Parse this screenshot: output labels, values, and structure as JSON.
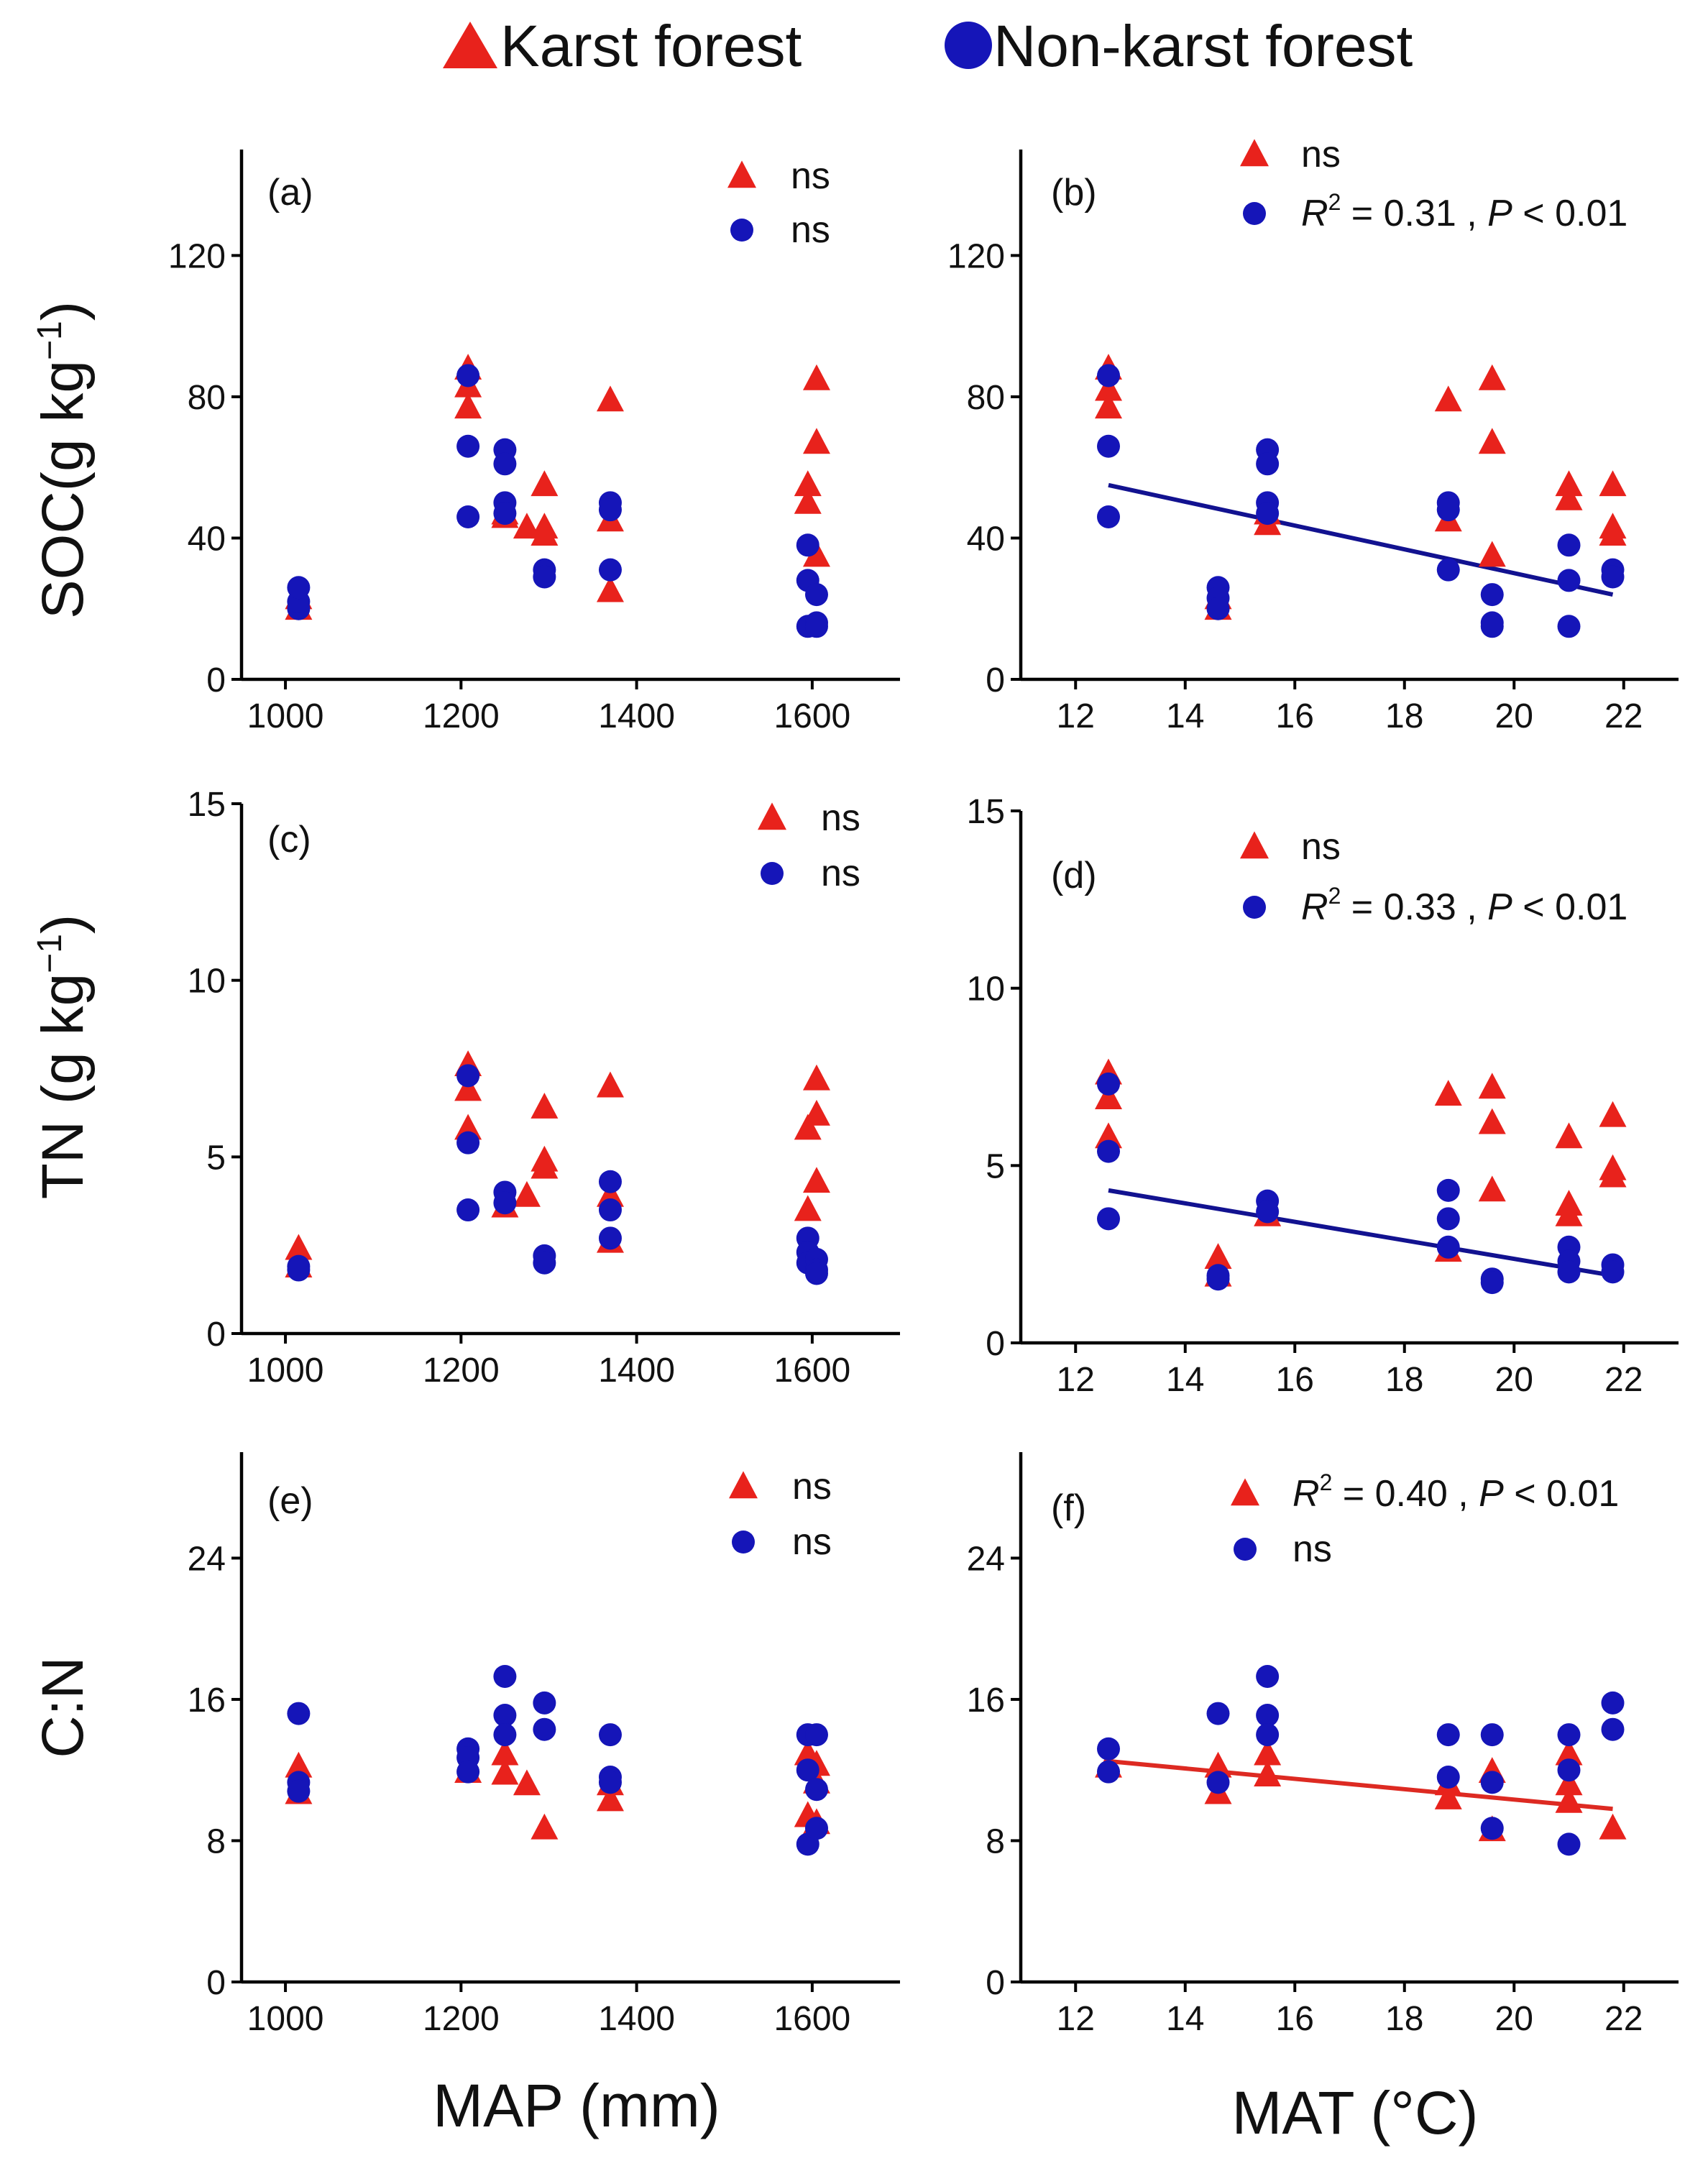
{
  "legend": {
    "karst_label": "Karst forest",
    "nonkarst_label": "Non-karst forest"
  },
  "colors": {
    "karst": "#e8221c",
    "nonkarst": "#1515b8",
    "fit_blue": "#121290",
    "fit_red": "#dd2a22"
  },
  "axes_labels": {
    "row1_ylabel": "SOC(g kg",
    "row2_ylabel": "TN (g kg",
    "row3_ylabel": "C:N",
    "superscript": "−1",
    "close": ")",
    "col1_xlabel": "MAP (mm)",
    "col2_xlabel": "MAT (°C)"
  },
  "chart_data": [
    {
      "id": "a",
      "panel_label": "(a)",
      "type": "scatter",
      "xlabel": "MAP (mm)",
      "ylabel": "SOC (g kg−1)",
      "xlim": [
        950,
        1700
      ],
      "ylim": [
        0,
        150
      ],
      "xticks": [
        1000,
        1200,
        1400,
        1600
      ],
      "yticks": [
        0,
        40,
        80,
        120
      ],
      "annotations": [
        {
          "series": "karst",
          "text": "ns"
        },
        {
          "series": "nonkarst",
          "text": "ns"
        }
      ],
      "series": [
        {
          "name": "Karst forest",
          "marker": "triangle",
          "x": [
            1015,
            1015,
            1208,
            1208,
            1208,
            1250,
            1250,
            1275,
            1295,
            1295,
            1295,
            1370,
            1370,
            1370,
            1595,
            1595,
            1605,
            1605,
            1605
          ],
          "y": [
            20,
            23,
            88,
            83,
            77,
            47,
            46,
            43,
            55,
            43,
            41,
            79,
            45,
            25,
            55,
            50,
            85,
            67,
            35
          ]
        },
        {
          "name": "Non-karst forest",
          "marker": "circle",
          "x": [
            1015,
            1015,
            1015,
            1208,
            1208,
            1208,
            1250,
            1250,
            1250,
            1250,
            1295,
            1295,
            1370,
            1370,
            1370,
            1595,
            1595,
            1595,
            1605,
            1605,
            1605
          ],
          "y": [
            20,
            22,
            26,
            86,
            66,
            46,
            65,
            61,
            50,
            47,
            31,
            29,
            50,
            48,
            31,
            38,
            28,
            15,
            24,
            16,
            15
          ]
        }
      ],
      "fits": []
    },
    {
      "id": "b",
      "panel_label": "(b)",
      "type": "scatter",
      "xlabel": "MAT (°C)",
      "ylabel": "SOC (g kg−1)",
      "xlim": [
        11,
        23
      ],
      "ylim": [
        0,
        150
      ],
      "xticks": [
        12,
        14,
        16,
        18,
        20,
        22
      ],
      "yticks": [
        0,
        40,
        80,
        120
      ],
      "annotations": [
        {
          "series": "karst",
          "text": "ns",
          "italic_r2": false
        },
        {
          "series": "nonkarst",
          "text": "R² = 0.31 , P < 0.01",
          "r2": "0.31",
          "p": "0.01"
        }
      ],
      "series": [
        {
          "name": "Karst forest",
          "marker": "triangle",
          "x": [
            12.6,
            12.6,
            12.6,
            14.6,
            14.6,
            15.5,
            15.5,
            18.8,
            18.8,
            19.6,
            19.6,
            19.6,
            21,
            21,
            21.8,
            21.8,
            21.8
          ],
          "y": [
            88,
            82,
            77,
            20,
            23,
            47,
            44,
            79,
            45,
            85,
            67,
            35,
            55,
            51,
            55,
            43,
            41
          ]
        },
        {
          "name": "Non-karst forest",
          "marker": "circle",
          "x": [
            12.6,
            12.6,
            12.6,
            14.6,
            14.6,
            14.6,
            15.5,
            15.5,
            15.5,
            15.5,
            18.8,
            18.8,
            18.8,
            19.6,
            19.6,
            19.6,
            21,
            21,
            21,
            21.8,
            21.8
          ],
          "y": [
            86,
            66,
            46,
            26,
            23,
            20,
            65,
            61,
            50,
            47,
            50,
            48,
            31,
            24,
            16,
            15,
            38,
            28,
            15,
            31,
            29
          ]
        }
      ],
      "fits": [
        {
          "series": "nonkarst",
          "x": [
            12.6,
            21.8
          ],
          "y": [
            55,
            24
          ]
        }
      ]
    },
    {
      "id": "c",
      "panel_label": "(c)",
      "type": "scatter",
      "xlabel": "MAP (mm)",
      "ylabel": "TN (g kg−1)",
      "xlim": [
        950,
        1700
      ],
      "ylim": [
        0,
        15
      ],
      "xticks": [
        1000,
        1200,
        1400,
        1600
      ],
      "yticks": [
        0,
        5,
        10,
        15
      ],
      "annotations": [
        {
          "series": "karst",
          "text": "ns"
        },
        {
          "series": "nonkarst",
          "text": "ns"
        }
      ],
      "series": [
        {
          "name": "Karst forest",
          "marker": "triangle",
          "x": [
            1015,
            1015,
            1208,
            1208,
            1208,
            1250,
            1275,
            1295,
            1295,
            1295,
            1370,
            1370,
            1370,
            1595,
            1595,
            1605,
            1605,
            1605
          ],
          "y": [
            2.4,
            1.9,
            7.6,
            6.9,
            5.8,
            3.6,
            3.9,
            6.4,
            4.9,
            4.7,
            7.0,
            3.9,
            2.6,
            5.8,
            3.5,
            7.2,
            6.2,
            4.3
          ]
        },
        {
          "name": "Non-karst forest",
          "marker": "circle",
          "x": [
            1015,
            1015,
            1208,
            1208,
            1208,
            1250,
            1250,
            1295,
            1295,
            1370,
            1370,
            1370,
            1595,
            1595,
            1595,
            1605,
            1605,
            1605
          ],
          "y": [
            1.9,
            1.8,
            7.3,
            5.4,
            3.5,
            4.0,
            3.7,
            2.2,
            2.0,
            4.3,
            3.5,
            2.7,
            2.7,
            2.3,
            2.0,
            2.1,
            1.8,
            1.7
          ]
        }
      ],
      "fits": []
    },
    {
      "id": "d",
      "panel_label": "(d)",
      "type": "scatter",
      "xlabel": "MAT (°C)",
      "ylabel": "TN (g kg−1)",
      "xlim": [
        11,
        23
      ],
      "ylim": [
        0,
        15
      ],
      "xticks": [
        12,
        14,
        16,
        18,
        20,
        22
      ],
      "yticks": [
        0,
        5,
        10,
        15
      ],
      "annotations": [
        {
          "series": "karst",
          "text": "ns"
        },
        {
          "series": "nonkarst",
          "text": "R² = 0.33 , P < 0.01",
          "r2": "0.33",
          "p": "0.01"
        }
      ],
      "series": [
        {
          "name": "Karst forest",
          "marker": "triangle",
          "x": [
            12.6,
            12.6,
            12.6,
            14.6,
            14.6,
            15.5,
            18.8,
            18.8,
            19.6,
            19.6,
            19.6,
            21,
            21,
            21,
            21.8,
            21.8,
            21.8
          ],
          "y": [
            7.6,
            6.9,
            5.8,
            2.4,
            1.9,
            3.6,
            7.0,
            2.6,
            7.2,
            6.2,
            4.3,
            5.8,
            3.9,
            3.6,
            6.4,
            4.9,
            4.7
          ]
        },
        {
          "name": "Non-karst forest",
          "marker": "circle",
          "x": [
            12.6,
            12.6,
            12.6,
            14.6,
            14.6,
            15.5,
            15.5,
            18.8,
            18.8,
            18.8,
            19.6,
            19.6,
            21,
            21,
            21,
            21.8,
            21.8
          ],
          "y": [
            7.3,
            5.4,
            3.5,
            1.9,
            1.8,
            4.0,
            3.7,
            4.3,
            3.5,
            2.7,
            1.8,
            1.7,
            2.7,
            2.3,
            2.0,
            2.2,
            2.0
          ]
        }
      ],
      "fits": [
        {
          "series": "nonkarst",
          "x": [
            12.6,
            21.8
          ],
          "y": [
            4.3,
            1.9
          ]
        }
      ]
    },
    {
      "id": "e",
      "panel_label": "(e)",
      "type": "scatter",
      "xlabel": "MAP (mm)",
      "ylabel": "C:N",
      "xlim": [
        950,
        1700
      ],
      "ylim": [
        0,
        30
      ],
      "xticks": [
        1000,
        1200,
        1400,
        1600
      ],
      "yticks": [
        0,
        8,
        16,
        24
      ],
      "annotations": [
        {
          "series": "karst",
          "text": "ns"
        },
        {
          "series": "nonkarst",
          "text": "ns"
        }
      ],
      "series": [
        {
          "name": "Karst forest",
          "marker": "triangle",
          "x": [
            1015,
            1015,
            1208,
            1250,
            1250,
            1275,
            1295,
            1370,
            1370,
            1595,
            1595,
            1605,
            1605,
            1605
          ],
          "y": [
            12.2,
            10.7,
            11.9,
            12.9,
            11.8,
            11.2,
            8.7,
            11.2,
            10.3,
            12.9,
            9.4,
            12.3,
            11.3,
            9.0
          ]
        },
        {
          "name": "Non-karst forest",
          "marker": "circle",
          "x": [
            1015,
            1015,
            1015,
            1208,
            1208,
            1208,
            1250,
            1250,
            1250,
            1295,
            1295,
            1370,
            1370,
            1370,
            1595,
            1595,
            1595,
            1605,
            1605,
            1605
          ],
          "y": [
            15.2,
            11.3,
            10.8,
            13.2,
            12.7,
            11.9,
            17.3,
            15.1,
            14.0,
            15.8,
            14.3,
            14.0,
            11.6,
            11.3,
            14.0,
            12.0,
            7.8,
            14.0,
            10.9,
            8.7
          ]
        }
      ],
      "fits": []
    },
    {
      "id": "f",
      "panel_label": "(f)",
      "type": "scatter",
      "xlabel": "MAT (°C)",
      "ylabel": "C:N",
      "xlim": [
        11,
        23
      ],
      "ylim": [
        0,
        30
      ],
      "xticks": [
        12,
        14,
        16,
        18,
        20,
        22
      ],
      "yticks": [
        0,
        8,
        16,
        24
      ],
      "annotations": [
        {
          "series": "karst",
          "text": "R² = 0.40 , P < 0.01",
          "r2": "0.40",
          "p": "0.01"
        },
        {
          "series": "nonkarst",
          "text": "ns"
        }
      ],
      "series": [
        {
          "name": "Karst forest",
          "marker": "triangle",
          "x": [
            12.6,
            14.6,
            14.6,
            15.5,
            15.5,
            18.8,
            18.8,
            19.6,
            19.6,
            21,
            21,
            21,
            21.8
          ],
          "y": [
            12.2,
            12.2,
            10.7,
            12.9,
            11.7,
            11.2,
            10.4,
            11.9,
            8.6,
            12.9,
            11.2,
            10.2,
            8.7
          ]
        },
        {
          "name": "Non-karst forest",
          "marker": "circle",
          "x": [
            12.6,
            12.6,
            14.6,
            14.6,
            15.5,
            15.5,
            15.5,
            18.8,
            18.8,
            19.6,
            19.6,
            19.6,
            21,
            21,
            21,
            21.8,
            21.8
          ],
          "y": [
            13.2,
            11.9,
            15.2,
            11.3,
            17.3,
            15.1,
            14.0,
            14.0,
            11.6,
            14.0,
            11.3,
            8.7,
            14.0,
            12.0,
            7.8,
            15.8,
            14.3
          ]
        }
      ],
      "fits": [
        {
          "series": "karst",
          "x": [
            12.6,
            21.8
          ],
          "y": [
            12.5,
            9.8
          ]
        }
      ]
    }
  ]
}
